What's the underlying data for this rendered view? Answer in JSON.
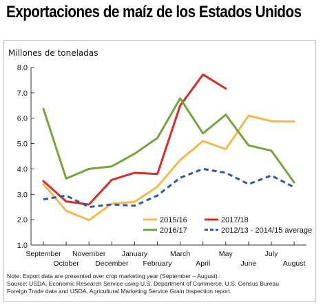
{
  "title": "Exportaciones de maíz de los Estados Unidos",
  "notes": [
    "Note: Export data are presented over crop marketing year (September – August).",
    "Source: USDA, Economic Research Service using U.S. Department of Commerce, U.S. Census Bureau",
    "Foreign Trade data and USDA, Agricultural Marketing Service Grain Inspection report."
  ],
  "chart_data": {
    "type": "line",
    "title": "Exportaciones de maíz de los Estados Unidos",
    "ylabel": "Millones de toneladas",
    "xlabel": "",
    "ylim": [
      1.0,
      8.0
    ],
    "yticks": [
      "8.0",
      "7.0",
      "6.0",
      "5.0",
      "4.0",
      "3.0",
      "2.0",
      "1.0"
    ],
    "categories": [
      "September",
      "October",
      "November",
      "December",
      "January",
      "February",
      "March",
      "April",
      "May",
      "June",
      "July",
      "August"
    ],
    "grid": false,
    "legend_position": "bottom-inside",
    "series": [
      {
        "name": "2015/16",
        "color": "#f5b94a",
        "dash": false,
        "values": [
          3.4,
          2.35,
          1.98,
          2.63,
          2.7,
          3.3,
          4.35,
          5.1,
          4.78,
          6.1,
          5.88,
          5.87
        ]
      },
      {
        "name": "2017/18",
        "color": "#d92b27",
        "dash": false,
        "values": [
          3.52,
          2.72,
          2.6,
          3.57,
          3.85,
          3.8,
          6.5,
          7.72,
          7.17,
          null,
          null,
          null
        ]
      },
      {
        "name": "2016/17",
        "color": "#77a33c",
        "dash": false,
        "values": [
          6.37,
          3.62,
          4.0,
          4.1,
          4.6,
          5.22,
          6.78,
          5.4,
          6.14,
          4.93,
          4.72,
          3.47
        ]
      },
      {
        "name": "2012/13 - 2014/15 average",
        "color": "#2d5a9c",
        "dash": true,
        "values": [
          2.8,
          2.95,
          2.5,
          2.6,
          2.55,
          2.95,
          3.65,
          4.0,
          3.85,
          3.4,
          3.74,
          3.28
        ]
      }
    ]
  }
}
